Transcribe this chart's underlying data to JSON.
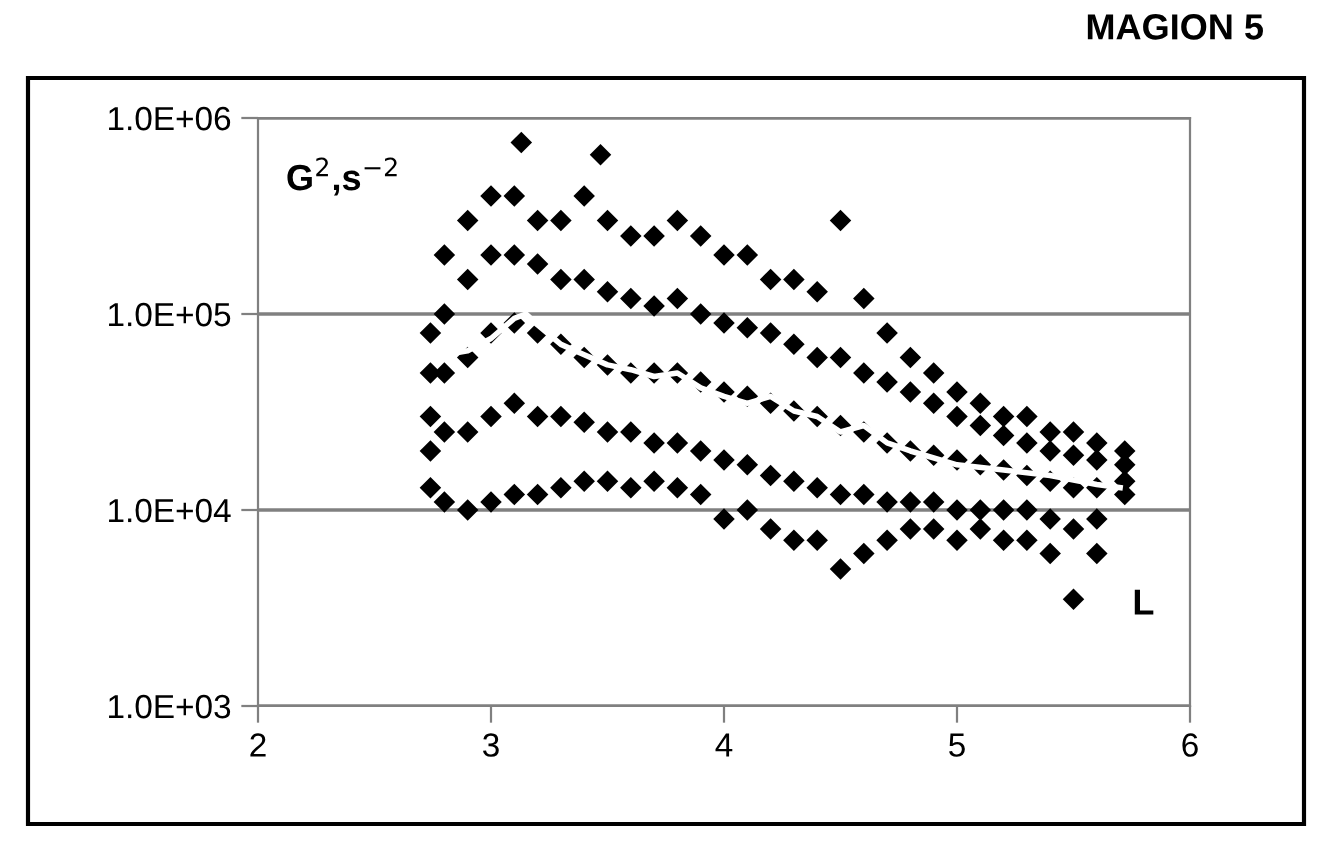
{
  "chart_data": {
    "type": "scatter",
    "title": "MAGION 5",
    "xlabel": "L",
    "ylabel": "G$^{2}$,s$^{−2}$",
    "log": "y",
    "grid": "y",
    "legend": false,
    "xlim": [
      2,
      6
    ],
    "xticks": [
      2,
      3,
      4,
      5,
      6
    ],
    "ylim": [
      1000,
      1000000
    ],
    "yticks": [
      {
        "value": 1000,
        "label": "1.0E+03"
      },
      {
        "value": 10000,
        "label": "1.0E+04"
      },
      {
        "value": 100000,
        "label": "1.0E+05"
      },
      {
        "value": 1000000,
        "label": "1.0E+06"
      }
    ],
    "series": [
      {
        "color": "#000000",
        "marker": "diamond",
        "x": [
          2.74,
          2.74,
          2.74,
          2.74,
          2.74,
          2.8,
          2.8,
          2.8,
          2.8,
          2.8,
          2.9,
          2.9,
          2.9,
          2.9,
          2.9,
          3.0,
          3.0,
          3.0,
          3.0,
          3.0,
          3.1,
          3.1,
          3.1,
          3.1,
          3.1,
          3.2,
          3.2,
          3.2,
          3.2,
          3.2,
          3.3,
          3.3,
          3.3,
          3.3,
          3.3,
          3.4,
          3.4,
          3.4,
          3.4,
          3.4,
          3.5,
          3.5,
          3.5,
          3.5,
          3.5,
          3.6,
          3.6,
          3.6,
          3.6,
          3.6,
          3.7,
          3.7,
          3.7,
          3.7,
          3.7,
          3.8,
          3.8,
          3.8,
          3.8,
          3.8,
          3.9,
          3.9,
          3.9,
          3.9,
          3.9,
          4.0,
          4.0,
          4.0,
          4.0,
          4.0,
          4.1,
          4.1,
          4.1,
          4.1,
          4.1,
          4.2,
          4.2,
          4.2,
          4.2,
          4.2,
          4.3,
          4.3,
          4.3,
          4.3,
          4.3,
          4.4,
          4.4,
          4.4,
          4.4,
          4.4,
          4.5,
          4.5,
          4.5,
          4.5,
          4.5,
          4.6,
          4.6,
          4.6,
          4.6,
          4.6,
          4.7,
          4.7,
          4.7,
          4.7,
          4.7,
          4.8,
          4.8,
          4.8,
          4.8,
          4.8,
          4.9,
          4.9,
          4.9,
          4.9,
          4.9,
          5.0,
          5.0,
          5.0,
          5.0,
          5.0,
          5.1,
          5.1,
          5.1,
          5.1,
          5.1,
          5.2,
          5.2,
          5.2,
          5.2,
          5.2,
          5.3,
          5.3,
          5.3,
          5.3,
          5.3,
          5.4,
          5.4,
          5.4,
          5.4,
          5.4,
          5.5,
          5.5,
          5.5,
          5.5,
          5.5,
          5.6,
          5.6,
          5.6,
          5.6,
          5.6,
          5.72,
          5.72,
          5.72,
          5.72,
          3.13,
          3.47
        ],
        "values": [
          80000,
          50000,
          30000,
          20000,
          13000,
          200000,
          100000,
          50000,
          25000,
          11000,
          300000,
          150000,
          60000,
          25000,
          10000,
          400000,
          200000,
          80000,
          30000,
          11000,
          400000,
          200000,
          90000,
          35000,
          12000,
          300000,
          180000,
          80000,
          30000,
          12000,
          300000,
          150000,
          70000,
          30000,
          13000,
          400000,
          150000,
          60000,
          28000,
          14000,
          300000,
          130000,
          55000,
          25000,
          14000,
          250000,
          120000,
          50000,
          25000,
          13000,
          250000,
          110000,
          50000,
          22000,
          14000,
          300000,
          120000,
          50000,
          22000,
          13000,
          250000,
          100000,
          45000,
          20000,
          12000,
          200000,
          90000,
          40000,
          18000,
          9000,
          200000,
          85000,
          38000,
          17000,
          10000,
          150000,
          80000,
          35000,
          15000,
          8000,
          150000,
          70000,
          32000,
          14000,
          7000,
          130000,
          60000,
          30000,
          13000,
          7000,
          300000,
          60000,
          27000,
          12000,
          5000,
          120000,
          50000,
          25000,
          12000,
          6000,
          80000,
          45000,
          22000,
          11000,
          7000,
          60000,
          40000,
          20000,
          11000,
          8000,
          50000,
          35000,
          19000,
          11000,
          8000,
          40000,
          30000,
          18000,
          10000,
          7000,
          35000,
          27000,
          17000,
          10000,
          8000,
          30000,
          24000,
          16000,
          10000,
          7000,
          30000,
          22000,
          15000,
          10000,
          7000,
          25000,
          20000,
          14000,
          9000,
          6000,
          25000,
          19000,
          13000,
          8000,
          3500,
          22000,
          18000,
          13000,
          9000,
          6000,
          20000,
          17000,
          14000,
          12000,
          750000,
          650000
        ]
      },
      {
        "type": "line",
        "color": "#ffffff",
        "marker": "none",
        "line_style": "solid",
        "x": [
          2.8,
          2.9,
          3.0,
          3.1,
          3.15,
          3.2,
          3.3,
          3.4,
          3.5,
          3.6,
          3.7,
          3.8,
          3.9,
          4.0,
          4.1,
          4.2,
          4.3,
          4.4,
          4.5,
          4.6,
          4.7,
          4.8,
          5.0,
          5.2,
          5.4,
          5.6,
          5.7
        ],
        "values": [
          62000,
          65000,
          75000,
          95000,
          100000,
          88000,
          70000,
          62000,
          55000,
          52000,
          48000,
          50000,
          42000,
          38000,
          35000,
          38000,
          32000,
          30000,
          25000,
          27000,
          22000,
          20000,
          17000,
          16000,
          15000,
          13500,
          13000
        ]
      }
    ]
  }
}
